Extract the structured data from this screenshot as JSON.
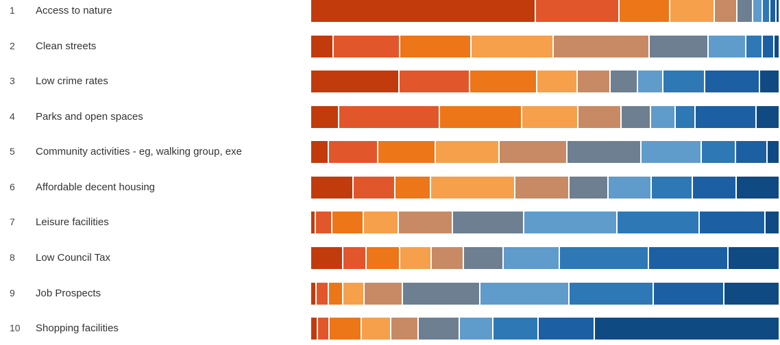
{
  "chart_data": {
    "type": "bar",
    "orientation": "horizontal",
    "stacked": true,
    "categories": [
      {
        "rank": "1",
        "label": "Access to nature"
      },
      {
        "rank": "2",
        "label": "Clean streets"
      },
      {
        "rank": "3",
        "label": "Low crime rates"
      },
      {
        "rank": "4",
        "label": "Parks and open spaces"
      },
      {
        "rank": "5",
        "label": "Community activities - eg, walking group, exe"
      },
      {
        "rank": "6",
        "label": "Affordable decent housing"
      },
      {
        "rank": "7",
        "label": "Leisure facilities"
      },
      {
        "rank": "8",
        "label": "Low Council Tax"
      },
      {
        "rank": "9",
        "label": "Job Prospects"
      },
      {
        "rank": "10",
        "label": "Shopping facilities"
      }
    ],
    "segment_colors": [
      "#c23b0c",
      "#e2562b",
      "#ec7618",
      "#f6a04c",
      "#c78a64",
      "#6d7f91",
      "#5f9bcb",
      "#2d78b5",
      "#1c5fa3",
      "#0f4a82"
    ],
    "values": [
      [
        48.0,
        17.8,
        10.8,
        9.5,
        4.8,
        3.4,
        2.0,
        1.7,
        1.2,
        0.8
      ],
      [
        4.8,
        14.2,
        15.2,
        17.5,
        20.5,
        12.6,
        8.0,
        3.6,
        2.5,
        1.1
      ],
      [
        18.9,
        15.0,
        14.3,
        8.7,
        7.0,
        5.9,
        5.4,
        8.9,
        11.7,
        4.2
      ],
      [
        6.0,
        21.5,
        17.5,
        12.0,
        9.2,
        6.3,
        5.3,
        4.2,
        13.0,
        5.0
      ],
      [
        3.8,
        10.5,
        12.3,
        13.6,
        14.5,
        15.8,
        12.8,
        7.3,
        6.7,
        2.7
      ],
      [
        9.0,
        9.0,
        7.6,
        18.0,
        11.5,
        8.3,
        9.3,
        8.7,
        9.4,
        9.2
      ],
      [
        1.0,
        3.5,
        6.7,
        7.5,
        11.5,
        15.2,
        20.0,
        17.5,
        14.0,
        3.1
      ],
      [
        6.8,
        5.0,
        7.2,
        6.7,
        6.9,
        8.5,
        12.0,
        19.0,
        17.0,
        10.9
      ],
      [
        1.2,
        2.6,
        3.0,
        4.6,
        8.2,
        16.5,
        19.0,
        18.0,
        15.0,
        11.9
      ],
      [
        1.5,
        2.5,
        6.8,
        6.3,
        5.8,
        8.8,
        7.2,
        9.7,
        11.9,
        39.5
      ]
    ]
  }
}
